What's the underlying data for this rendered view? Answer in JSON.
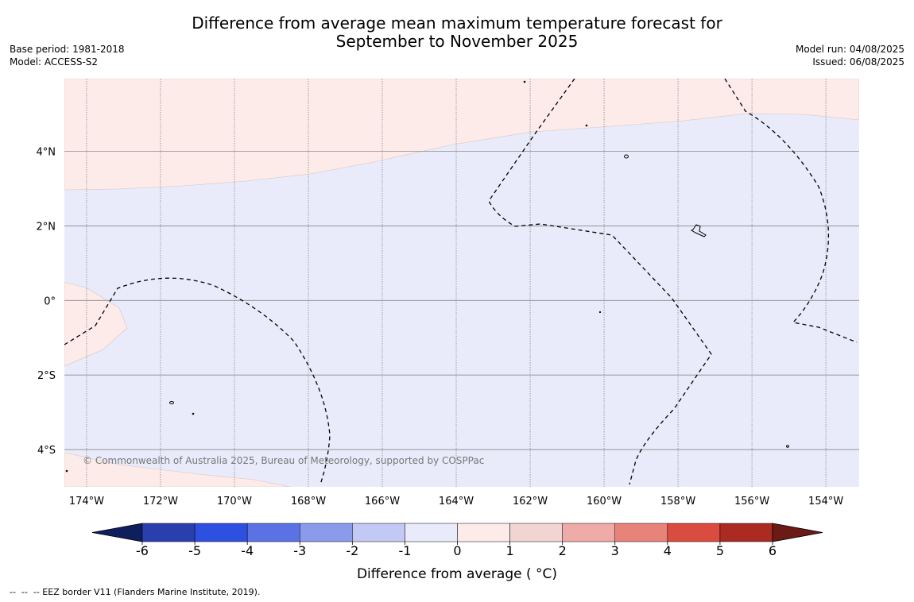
{
  "title_line1": "Difference from average mean maximum temperature forecast for",
  "title_line2": "September to November 2025",
  "base_period": "Base period: 1981-2018",
  "model": "Model: ACCESS-S2",
  "model_run": "Model run: 04/08/2025",
  "issued": "Issued: 06/08/2025",
  "copyright": "© Commonwealth of Australia 2025, Bureau of Meteorology, supported by COSPPac",
  "footer": "--  --  -- EEZ border V11 (Flanders Marine Institute, 2019).",
  "map": {
    "lon_range": [
      -174.6,
      -153.1
    ],
    "lat_range": [
      -5.0,
      5.95
    ],
    "lon_ticks": [
      -174,
      -172,
      -170,
      -168,
      -166,
      -164,
      -162,
      -160,
      -158,
      -156,
      -154
    ],
    "lat_ticks": [
      4,
      2,
      0,
      -2,
      -4
    ],
    "lon_labels": [
      "174°W",
      "172°W",
      "170°W",
      "168°W",
      "166°W",
      "164°W",
      "162°W",
      "160°W",
      "158°W",
      "156°W",
      "154°W"
    ],
    "lat_labels": [
      "4°N",
      "2°N",
      "0°",
      "2°S",
      "4°S"
    ],
    "colors": {
      "anomaly_0_to_1": "#fcebe9",
      "anomaly_m1_to_0": "#e9ebfb",
      "gridline": "#888888"
    }
  },
  "colorbar": {
    "label": "Difference from average ( °C)",
    "ticks": [
      "-6",
      "-5",
      "-4",
      "-3",
      "-2",
      "-1",
      "0",
      "1",
      "2",
      "3",
      "4",
      "5",
      "6"
    ],
    "colors": [
      "#2a3fae",
      "#2e50e0",
      "#5b72e4",
      "#8a9bec",
      "#c3c9f5",
      "#e9ebfb",
      "#fcebe9",
      "#f2d5d3",
      "#eeaba7",
      "#e8837a",
      "#da4b40",
      "#ab2a22"
    ],
    "under_color": "#0f1f5e",
    "over_color": "#6b1a16"
  }
}
